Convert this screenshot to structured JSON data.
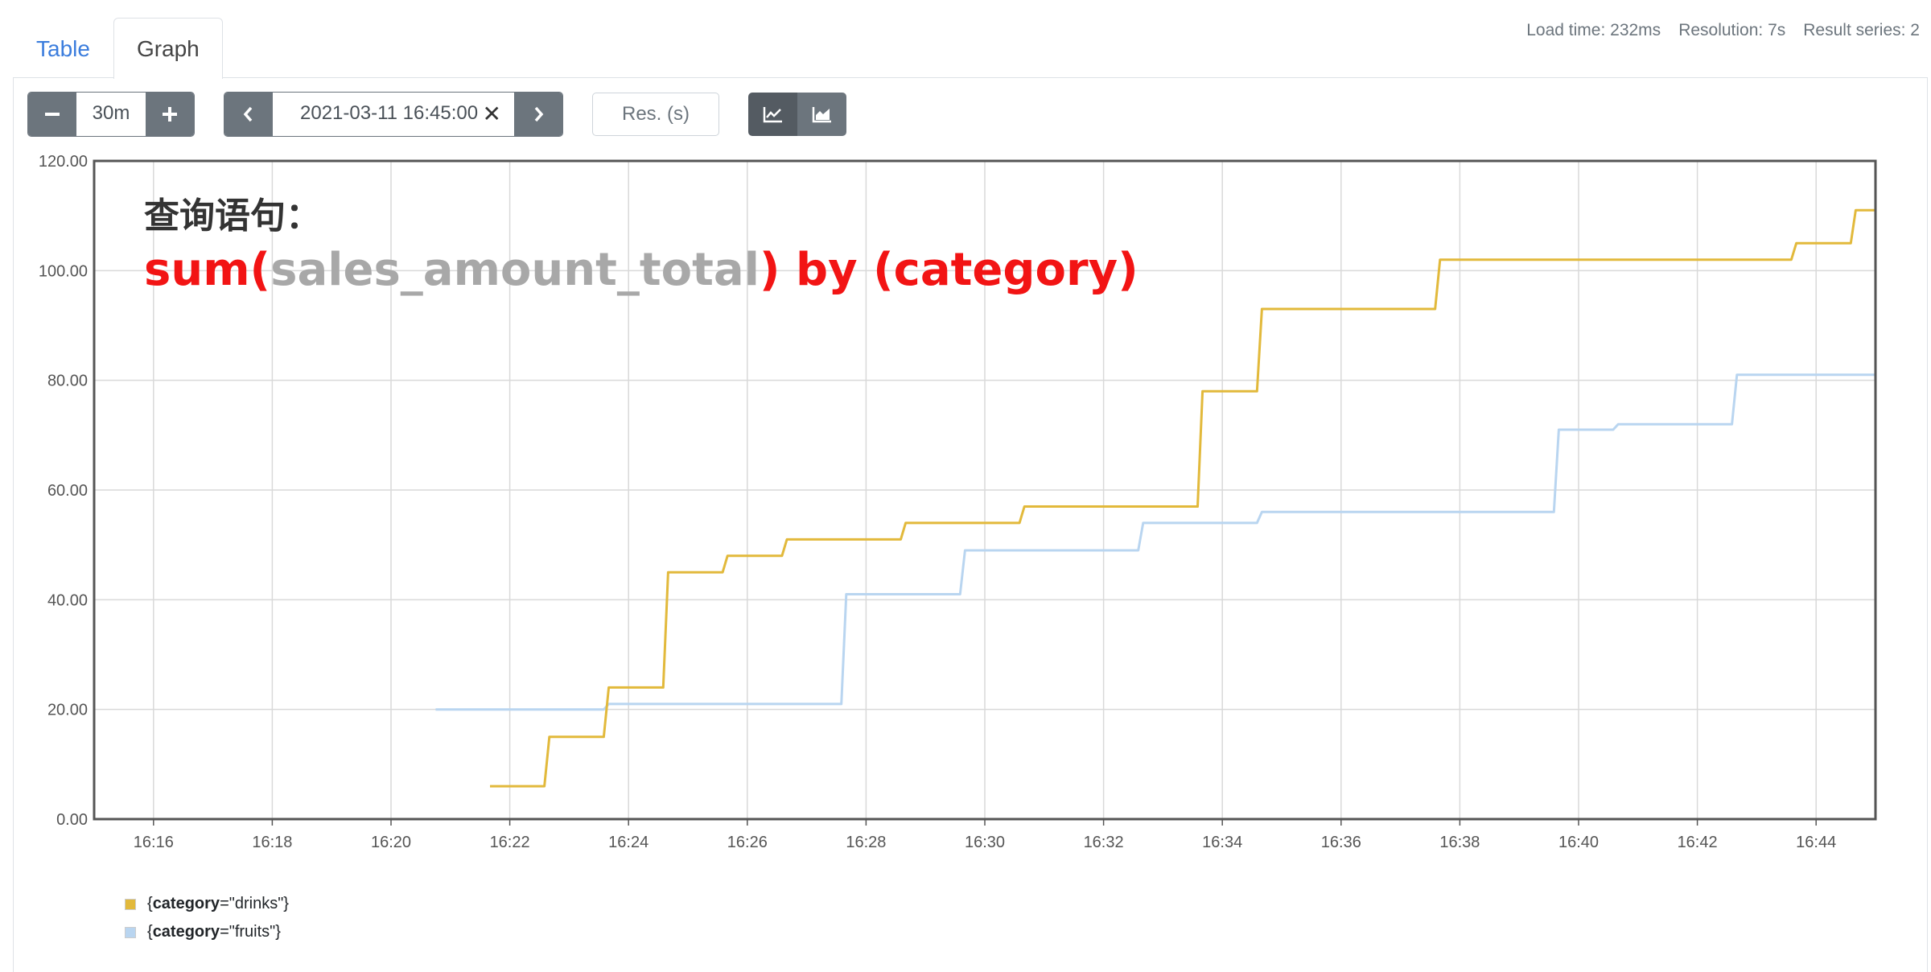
{
  "tabs": {
    "table": "Table",
    "graph": "Graph"
  },
  "stats": {
    "load_time": "Load time: 232ms",
    "resolution": "Resolution: 7s",
    "result_series": "Result series: 2"
  },
  "controls": {
    "range": "30m",
    "end_time": "2021-03-11 16:45:00",
    "resolution_placeholder": "Res. (s)",
    "icons": [
      "minus-icon",
      "plus-icon",
      "chevron-left-icon",
      "close-icon",
      "chevron-right-icon",
      "line-chart-icon",
      "area-chart-icon"
    ]
  },
  "annotation": {
    "label": "查询语句：",
    "query_sum": "sum(",
    "query_metric": "sales_amount_total",
    "query_rest": ") by (category)"
  },
  "colors": {
    "drinks": "#e2b93b",
    "fruits": "#b9d5f0",
    "query_red": "#f21414",
    "query_gray": "#a8a8a8"
  },
  "legend": [
    {
      "prefix": "{",
      "key": "category",
      "value": "=\"drinks\"}"
    },
    {
      "prefix": "{",
      "key": "category",
      "value": "=\"fruits\"}"
    }
  ],
  "chart_data": {
    "type": "line",
    "x_ticks": [
      "16:16",
      "16:18",
      "16:20",
      "16:22",
      "16:24",
      "16:26",
      "16:28",
      "16:30",
      "16:32",
      "16:34",
      "16:36",
      "16:38",
      "16:40",
      "16:42",
      "16:44"
    ],
    "y_ticks": [
      "0.00",
      "20.00",
      "40.00",
      "60.00",
      "80.00",
      "100.00",
      "120.00"
    ],
    "xlim": [
      "16:15",
      "16:45"
    ],
    "ylim": [
      0,
      120
    ],
    "grid": true,
    "legend_position": "bottom-left",
    "series": [
      {
        "name": "{category=\"drinks\"}",
        "x": [
          "16:21:40",
          "16:22:35",
          "16:22:40",
          "16:23:35",
          "16:23:40",
          "16:24:35",
          "16:24:40",
          "16:25:35",
          "16:25:40",
          "16:26:35",
          "16:26:40",
          "16:28:35",
          "16:28:40",
          "16:30:35",
          "16:30:40",
          "16:33:35",
          "16:33:40",
          "16:34:35",
          "16:34:40",
          "16:37:35",
          "16:37:40",
          "16:43:35",
          "16:43:40",
          "16:44:35",
          "16:44:40",
          "16:45:00"
        ],
        "values": [
          6,
          6,
          15,
          15,
          24,
          24,
          45,
          45,
          48,
          48,
          51,
          51,
          54,
          54,
          57,
          57,
          78,
          78,
          93,
          93,
          102,
          102,
          105,
          105,
          111,
          111
        ]
      },
      {
        "name": "{category=\"fruits\"}",
        "x": [
          "16:20:45",
          "16:23:35",
          "16:23:40",
          "16:27:35",
          "16:27:40",
          "16:29:35",
          "16:29:40",
          "16:32:35",
          "16:32:40",
          "16:34:35",
          "16:34:40",
          "16:39:35",
          "16:39:40",
          "16:40:35",
          "16:40:40",
          "16:42:35",
          "16:42:40",
          "16:45:00"
        ],
        "values": [
          20,
          20,
          21,
          21,
          41,
          41,
          49,
          49,
          54,
          54,
          56,
          56,
          71,
          71,
          72,
          72,
          81,
          81
        ]
      }
    ]
  }
}
